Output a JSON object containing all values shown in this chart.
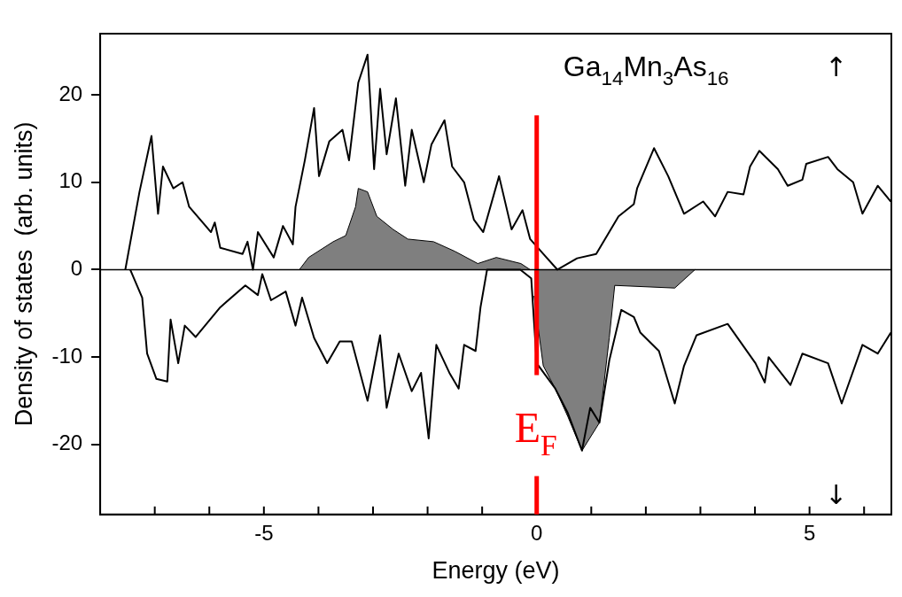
{
  "chart_data": {
    "type": "line",
    "xlabel": "Energy (eV)",
    "ylabel": "Density of states  (arb. units)",
    "xlim": [
      -8,
      6.5
    ],
    "ylim": [
      -28,
      27
    ],
    "xticks": [
      {
        "value": -7,
        "label": null
      },
      {
        "value": -6,
        "label": null
      },
      -5,
      {
        "value": -4,
        "label": null
      },
      {
        "value": -3,
        "label": null
      },
      {
        "value": -2,
        "label": null
      },
      {
        "value": -1,
        "label": null
      },
      0,
      {
        "value": 1,
        "label": null
      },
      {
        "value": 2,
        "label": null
      },
      {
        "value": 3,
        "label": null
      },
      {
        "value": 4,
        "label": null
      },
      5,
      {
        "value": 6,
        "label": null
      }
    ],
    "yticks": [
      -20,
      -10,
      0,
      10,
      20
    ],
    "series": [
      {
        "color": "#000000",
        "x": [
          -7.54,
          -7.28,
          -7.06,
          -6.94,
          -6.85,
          -6.66,
          -6.49,
          -6.37,
          -5.97,
          -5.9,
          -5.8,
          -5.39,
          -5.3,
          -5.2,
          -5.11,
          -4.82,
          -4.65,
          -4.47,
          -4.42,
          -4.25,
          -4.08,
          -3.99,
          -3.8,
          -3.56,
          -3.44,
          -3.27,
          -3.1,
          -3.05,
          -2.98,
          -2.87,
          -2.75,
          -2.58,
          -2.41,
          -2.29,
          -2.07,
          -1.93,
          -1.69,
          -1.55,
          -1.33,
          -1.15,
          -0.98,
          -0.69,
          -0.46,
          -0.26,
          -0.12,
          0.12,
          0.38,
          0.74,
          1.09,
          1.5,
          1.78,
          1.84,
          2.15,
          2.41,
          2.7,
          3.05,
          3.27,
          3.5,
          3.79,
          3.91,
          4.08,
          4.42,
          4.6,
          4.87,
          4.94,
          5.34,
          5.51,
          5.8,
          5.97,
          6.25,
          6.49
        ],
        "values": [
          0,
          8.9,
          15.3,
          6.4,
          11.8,
          9.3,
          10,
          7.2,
          4.3,
          5.4,
          2.5,
          1.8,
          3.2,
          0,
          4.3,
          1.4,
          5,
          2.9,
          7.2,
          12.5,
          18.5,
          10.7,
          14.7,
          16,
          12.5,
          21.4,
          24.6,
          19.3,
          11.5,
          20.7,
          13.2,
          19.6,
          9.6,
          16,
          10,
          14.3,
          17.1,
          11.8,
          10,
          5.7,
          4.3,
          10.7,
          4.6,
          6.8,
          3.5,
          1.8,
          0,
          1.3,
          1.8,
          6.1,
          7.5,
          9.3,
          13.9,
          10.7,
          6.4,
          7.8,
          6.1,
          8.9,
          8.6,
          11.8,
          13.6,
          11.5,
          9.6,
          10.3,
          12.1,
          12.9,
          11.5,
          10,
          6.4,
          9.6,
          7.8
        ]
      },
      {
        "color": "#000000",
        "x": [
          -7.45,
          -7.23,
          -7.14,
          -6.97,
          -6.77,
          -6.71,
          -6.57,
          -6.45,
          -6.25,
          -5.8,
          -5.34,
          -5.11,
          -5.03,
          -4.87,
          -4.6,
          -4.42,
          -4.3,
          -4.08,
          -3.84,
          -3.61,
          -3.39,
          -3.1,
          -2.87,
          -2.75,
          -2.53,
          -2.29,
          -2.12,
          -1.98,
          -1.84,
          -1.6,
          -1.43,
          -1.33,
          -1.12,
          -1.03,
          -0.91,
          -0.3,
          -0.1,
          0,
          0.34,
          0.57,
          0.83,
          0.98,
          1.15,
          1.33,
          1.55,
          1.78,
          1.9,
          2.24,
          2.53,
          2.7,
          2.93,
          3.5,
          4.01,
          4.18,
          4.25,
          4.65,
          4.87,
          5.34,
          5.59,
          5.97,
          6.25,
          6.49
        ],
        "values": [
          0,
          -3.2,
          -9.6,
          -12.5,
          -12.8,
          -5.7,
          -10.7,
          -6.4,
          -7.7,
          -4.3,
          -1.8,
          -2.9,
          -0.5,
          -3.5,
          -2.5,
          -6.4,
          -3.2,
          -7.8,
          -10.7,
          -8.2,
          -8.2,
          -15,
          -7.5,
          -15.8,
          -9.6,
          -13.9,
          -11.8,
          -19.3,
          -8.6,
          -11.8,
          -13.6,
          -8.6,
          -9.3,
          -4.3,
          0,
          0,
          -1,
          -10.7,
          -13.6,
          -16.4,
          -20.7,
          -15.8,
          -17.5,
          -10.4,
          -4.6,
          -5.4,
          -7.2,
          -9.3,
          -15.3,
          -11,
          -7.5,
          -6.2,
          -10.7,
          -12.9,
          -10,
          -13.2,
          -9.6,
          -10.7,
          -15.3,
          -8.6,
          -9.6,
          -7.2
        ]
      },
      {
        "type": "area",
        "color": "#000000",
        "x": [
          -4.35,
          -4.18,
          -3.73,
          -3.5,
          -3.32,
          -3.27,
          -3.1,
          -2.93,
          -2.63,
          -2.36,
          -1.89,
          -1.5,
          -1.08,
          -0.74,
          -0.29,
          -0.12
        ],
        "values": [
          0,
          1.4,
          3.2,
          3.9,
          7.2,
          9.3,
          8.9,
          6.1,
          4.6,
          3.5,
          3.2,
          2.1,
          0.7,
          1.4,
          0.7,
          0
        ]
      },
      {
        "type": "area",
        "color": "#000000",
        "x": [
          -0.05,
          0.12,
          0.34,
          0.57,
          0.83,
          1.15,
          1.33,
          1.43,
          2.53,
          2.9
        ],
        "values": [
          -3,
          -11,
          -13.6,
          -16.8,
          -20.7,
          -17.5,
          -7.8,
          -1.8,
          -2.1,
          0
        ]
      }
    ],
    "ref_lines": [
      {
        "axis": "x",
        "value": 0,
        "label": "E$_{F}$",
        "color": "#ff0000"
      },
      {
        "axis": "y",
        "value": 0,
        "color": "#000000"
      }
    ],
    "annotations": [
      "Ga$_{14}$Mn$_{3}$As$_{16}$",
      "↑",
      "↓"
    ]
  }
}
